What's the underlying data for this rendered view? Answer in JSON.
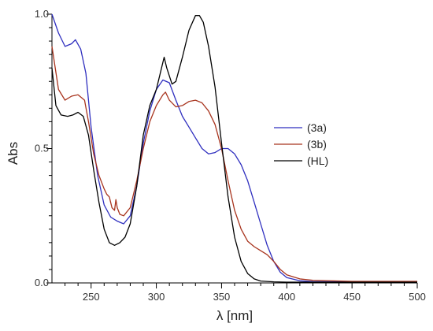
{
  "chart_data": {
    "type": "line",
    "xlabel": "λ [nm]",
    "ylabel": "Abs",
    "xlim": [
      220,
      500
    ],
    "ylim": [
      0,
      1.0
    ],
    "x_ticks": [
      250,
      300,
      350,
      400,
      450,
      500
    ],
    "x_tick_labels": [
      "250",
      "300",
      "350",
      "400",
      "450",
      "500"
    ],
    "y_ticks": [
      0.0,
      0.5,
      1.0
    ],
    "y_tick_labels": [
      "0.0",
      "0.5",
      "1.0"
    ],
    "grid": false,
    "legend_position": "right",
    "series": [
      {
        "name": "(3a)",
        "color": "#2f2fbf",
        "points": [
          [
            220,
            1.0
          ],
          [
            225,
            0.93
          ],
          [
            230,
            0.88
          ],
          [
            235,
            0.89
          ],
          [
            238,
            0.905
          ],
          [
            242,
            0.87
          ],
          [
            246,
            0.78
          ],
          [
            250,
            0.58
          ],
          [
            255,
            0.4
          ],
          [
            260,
            0.29
          ],
          [
            265,
            0.245
          ],
          [
            270,
            0.23
          ],
          [
            275,
            0.22
          ],
          [
            280,
            0.25
          ],
          [
            285,
            0.36
          ],
          [
            290,
            0.52
          ],
          [
            295,
            0.64
          ],
          [
            300,
            0.72
          ],
          [
            305,
            0.755
          ],
          [
            310,
            0.745
          ],
          [
            315,
            0.68
          ],
          [
            320,
            0.62
          ],
          [
            325,
            0.58
          ],
          [
            330,
            0.54
          ],
          [
            335,
            0.5
          ],
          [
            340,
            0.48
          ],
          [
            345,
            0.485
          ],
          [
            350,
            0.5
          ],
          [
            355,
            0.5
          ],
          [
            360,
            0.48
          ],
          [
            365,
            0.44
          ],
          [
            370,
            0.38
          ],
          [
            375,
            0.3
          ],
          [
            380,
            0.22
          ],
          [
            385,
            0.14
          ],
          [
            390,
            0.08
          ],
          [
            395,
            0.04
          ],
          [
            400,
            0.02
          ],
          [
            410,
            0.008
          ],
          [
            420,
            0.005
          ],
          [
            450,
            0.004
          ],
          [
            500,
            0.004
          ]
        ]
      },
      {
        "name": "(3b)",
        "color": "#a8341e",
        "points": [
          [
            220,
            0.88
          ],
          [
            225,
            0.72
          ],
          [
            230,
            0.68
          ],
          [
            235,
            0.695
          ],
          [
            240,
            0.7
          ],
          [
            245,
            0.68
          ],
          [
            248,
            0.6
          ],
          [
            252,
            0.48
          ],
          [
            256,
            0.4
          ],
          [
            260,
            0.35
          ],
          [
            262,
            0.33
          ],
          [
            264,
            0.32
          ],
          [
            266,
            0.28
          ],
          [
            268,
            0.27
          ],
          [
            269,
            0.31
          ],
          [
            270,
            0.28
          ],
          [
            272,
            0.255
          ],
          [
            275,
            0.25
          ],
          [
            280,
            0.28
          ],
          [
            285,
            0.38
          ],
          [
            290,
            0.5
          ],
          [
            295,
            0.6
          ],
          [
            300,
            0.66
          ],
          [
            305,
            0.7
          ],
          [
            307,
            0.71
          ],
          [
            310,
            0.68
          ],
          [
            315,
            0.655
          ],
          [
            320,
            0.66
          ],
          [
            325,
            0.675
          ],
          [
            330,
            0.68
          ],
          [
            335,
            0.67
          ],
          [
            340,
            0.64
          ],
          [
            345,
            0.59
          ],
          [
            350,
            0.5
          ],
          [
            355,
            0.38
          ],
          [
            360,
            0.27
          ],
          [
            365,
            0.2
          ],
          [
            370,
            0.155
          ],
          [
            375,
            0.135
          ],
          [
            380,
            0.12
          ],
          [
            385,
            0.105
          ],
          [
            390,
            0.08
          ],
          [
            395,
            0.05
          ],
          [
            400,
            0.03
          ],
          [
            410,
            0.015
          ],
          [
            420,
            0.01
          ],
          [
            450,
            0.006
          ],
          [
            500,
            0.006
          ]
        ]
      },
      {
        "name": "(HL)",
        "color": "#000000",
        "points": [
          [
            220,
            0.8
          ],
          [
            223,
            0.66
          ],
          [
            227,
            0.625
          ],
          [
            232,
            0.62
          ],
          [
            236,
            0.625
          ],
          [
            240,
            0.635
          ],
          [
            244,
            0.62
          ],
          [
            248,
            0.55
          ],
          [
            252,
            0.42
          ],
          [
            256,
            0.3
          ],
          [
            260,
            0.2
          ],
          [
            264,
            0.15
          ],
          [
            268,
            0.14
          ],
          [
            272,
            0.15
          ],
          [
            276,
            0.17
          ],
          [
            280,
            0.22
          ],
          [
            285,
            0.36
          ],
          [
            290,
            0.55
          ],
          [
            295,
            0.66
          ],
          [
            300,
            0.72
          ],
          [
            304,
            0.8
          ],
          [
            306,
            0.84
          ],
          [
            308,
            0.8
          ],
          [
            312,
            0.74
          ],
          [
            315,
            0.75
          ],
          [
            320,
            0.84
          ],
          [
            325,
            0.94
          ],
          [
            330,
            0.995
          ],
          [
            333,
            0.995
          ],
          [
            336,
            0.97
          ],
          [
            340,
            0.88
          ],
          [
            345,
            0.73
          ],
          [
            350,
            0.52
          ],
          [
            355,
            0.32
          ],
          [
            360,
            0.17
          ],
          [
            365,
            0.08
          ],
          [
            370,
            0.035
          ],
          [
            375,
            0.015
          ],
          [
            380,
            0.007
          ],
          [
            390,
            0.004
          ],
          [
            400,
            0.003
          ],
          [
            450,
            0.003
          ],
          [
            500,
            0.003
          ]
        ]
      }
    ]
  }
}
